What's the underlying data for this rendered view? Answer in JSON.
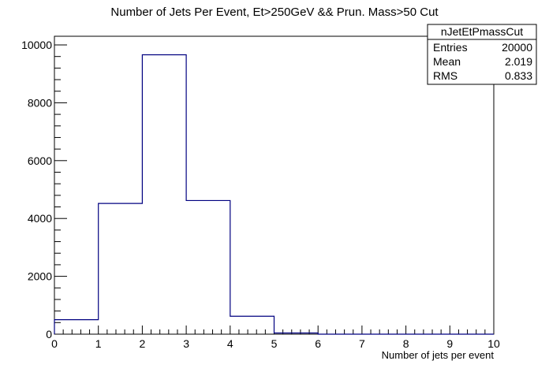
{
  "chart_data": {
    "type": "bar",
    "title": "Number of Jets Per Event, Et>250GeV && Prun. Mass>50 Cut",
    "xlabel": "Number of jets per event",
    "ylabel": "",
    "xlim": [
      0,
      10
    ],
    "ylim": [
      0,
      10300
    ],
    "x_ticks": [
      "0",
      "1",
      "2",
      "3",
      "4",
      "5",
      "6",
      "7",
      "8",
      "9",
      "10"
    ],
    "y_ticks": [
      "0",
      "2000",
      "4000",
      "6000",
      "8000",
      "10000"
    ],
    "bins": [
      {
        "low": 0,
        "high": 1,
        "value": 500
      },
      {
        "low": 1,
        "high": 2,
        "value": 4520
      },
      {
        "low": 2,
        "high": 3,
        "value": 9660
      },
      {
        "low": 3,
        "high": 4,
        "value": 4620
      },
      {
        "low": 4,
        "high": 5,
        "value": 620
      },
      {
        "low": 5,
        "high": 6,
        "value": 40
      },
      {
        "low": 6,
        "high": 7,
        "value": 0
      },
      {
        "low": 7,
        "high": 8,
        "value": 0
      },
      {
        "low": 8,
        "high": 9,
        "value": 0
      },
      {
        "low": 9,
        "high": 10,
        "value": 0
      }
    ],
    "line_color": "#000080",
    "grid": false,
    "legend_placement": "top-right"
  },
  "stats_box": {
    "name": "nJetEtPmassCut",
    "rows": [
      {
        "label": "Entries",
        "value": "20000"
      },
      {
        "label": "Mean",
        "value": "2.019"
      },
      {
        "label": "RMS",
        "value": "0.833"
      }
    ]
  }
}
